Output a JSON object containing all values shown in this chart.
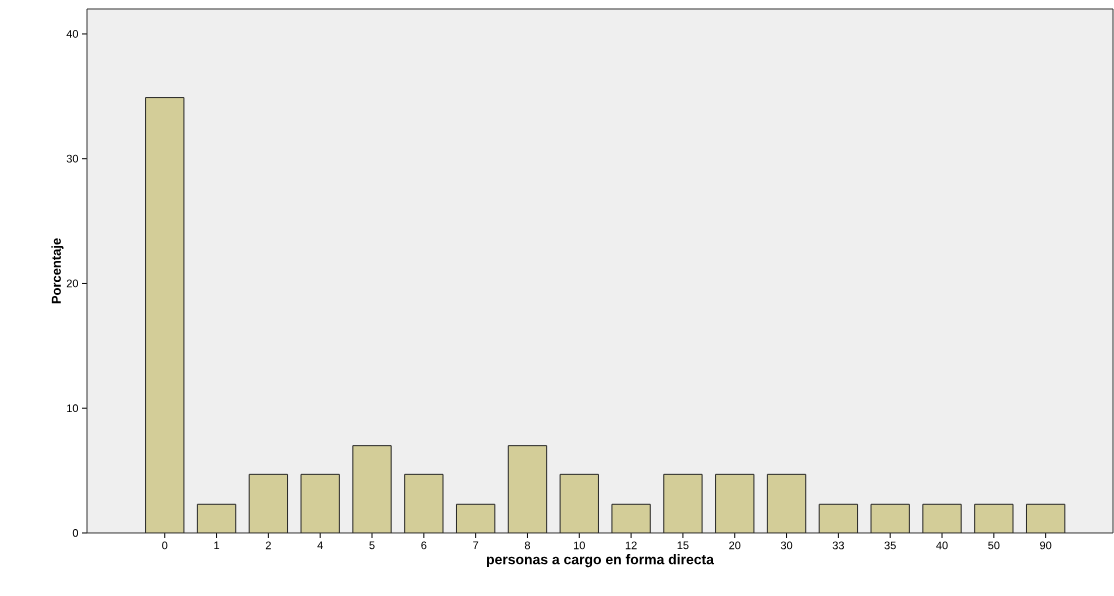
{
  "chart_data": {
    "type": "bar",
    "xlabel": "personas a cargo en forma directa",
    "ylabel": "Porcentaje",
    "categories": [
      "0",
      "1",
      "2",
      "4",
      "5",
      "6",
      "7",
      "8",
      "10",
      "12",
      "15",
      "20",
      "30",
      "33",
      "35",
      "40",
      "50",
      "90"
    ],
    "values": [
      34.9,
      2.3,
      4.7,
      4.7,
      7.0,
      4.7,
      2.3,
      7.0,
      4.7,
      2.3,
      4.7,
      4.7,
      4.7,
      2.3,
      2.3,
      2.3,
      2.3,
      2.3
    ],
    "color": "#d3cd98",
    "ylim": [
      0,
      42
    ],
    "yticks": [
      0,
      10,
      20,
      30,
      40
    ]
  }
}
